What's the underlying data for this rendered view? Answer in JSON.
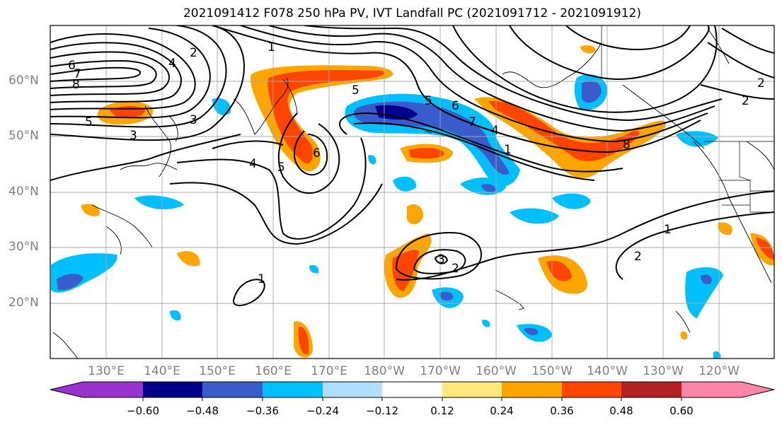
{
  "title": "2021091412 F078 250 hPa PV, IVT Landfall PC (2021091712 - 2021091912)",
  "lat_labels": [
    "60°N",
    "50°N",
    "40°N",
    "30°N",
    "20°N"
  ],
  "lon_labels": [
    "130°E",
    "140°E",
    "150°E",
    "160°E",
    "170°E",
    "180°W",
    "170°W",
    "160°W",
    "150°W",
    "140°W",
    "130°W",
    "120°W"
  ],
  "colorbar": {
    "ticks": [
      "−0.60",
      "−0.48",
      "−0.36",
      "−0.24",
      "−0.12",
      "0.12",
      "0.24",
      "0.36",
      "0.48",
      "0.60"
    ],
    "colors": [
      "#9932cc",
      "#00008b",
      "#3a5bcc",
      "#00bfff",
      "#b0e0ff",
      "#ffffff",
      "#ffe97f",
      "#ffa500",
      "#ff4500",
      "#b22222",
      "#ff85aa"
    ]
  },
  "contour_labels": [
    "2",
    "1",
    "6",
    "7",
    "8",
    "4",
    "5",
    "3",
    "5",
    "2",
    "3",
    "4",
    "5",
    "6",
    "4",
    "5",
    "6",
    "7",
    "8",
    "1",
    "2",
    "1",
    "2",
    "3",
    "2",
    "1"
  ]
}
